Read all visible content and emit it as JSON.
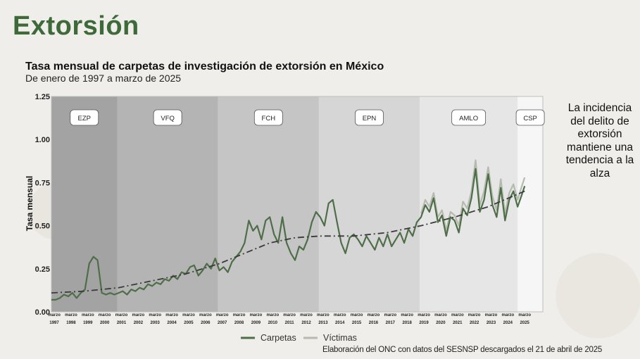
{
  "page": {
    "title": "Extorsión"
  },
  "side_note": "La incidencia del delito de extorsión mantiene una tendencia a la alza",
  "source": "Elaboración del ONC con datos del SESNSP descargados el 21 de abril de 2025",
  "colors": {
    "title": "#3e6a3a",
    "carpetas": "#4e6e48",
    "victimas": "#b5b9ae",
    "trend": "#3a3a3a"
  },
  "chart_data": {
    "type": "line",
    "title": "Tasa mensual de carpetas de investigación de extorsión en México",
    "subtitle": "De enero de 1997 a marzo de 2025",
    "ylabel": "Tasa mensual",
    "ylim": [
      0,
      1.25
    ],
    "xlim": [
      1997.0,
      2026.25
    ],
    "yticks": [
      0,
      0.25,
      0.5,
      0.75,
      1.0,
      1.25
    ],
    "ytick_labels": [
      "0.00",
      "0.25",
      "0.50",
      "0.75",
      "1.00",
      "1.25"
    ],
    "xtick_month": "marzo",
    "xtick_years": [
      "1997",
      "1998",
      "1999",
      "2000",
      "2001",
      "2002",
      "2003",
      "2004",
      "2005",
      "2006",
      "2007",
      "2008",
      "2009",
      "2010",
      "2011",
      "2012",
      "2013",
      "2014",
      "2015",
      "2016",
      "2017",
      "2018",
      "2019",
      "2020",
      "2021",
      "2022",
      "2023",
      "2024",
      "2025"
    ],
    "periods": [
      {
        "label": "EZP",
        "start": 1997.0,
        "end": 2000.92,
        "color": "#a3a3a3"
      },
      {
        "label": "VFQ",
        "start": 2000.92,
        "end": 2006.92,
        "color": "#b4b4b4"
      },
      {
        "label": "FCH",
        "start": 2006.92,
        "end": 2012.92,
        "color": "#c5c5c5"
      },
      {
        "label": "EPN",
        "start": 2012.92,
        "end": 2018.92,
        "color": "#d6d6d6"
      },
      {
        "label": "AMLO",
        "start": 2018.92,
        "end": 2024.75,
        "color": "#e6e6e6"
      },
      {
        "label": "CSP",
        "start": 2024.75,
        "end": 2026.25,
        "color": "#f6f6f6"
      }
    ],
    "legend": [
      "Carpetas",
      "Víctimas"
    ],
    "legend_position": "bottom-center",
    "series": [
      {
        "name": "Carpetas",
        "x": [
          1997.0,
          1997.25,
          1997.5,
          1997.75,
          1998.0,
          1998.25,
          1998.5,
          1998.75,
          1999.0,
          1999.25,
          1999.5,
          1999.75,
          2000.0,
          2000.25,
          2000.5,
          2000.75,
          2001.0,
          2001.25,
          2001.5,
          2001.75,
          2002.0,
          2002.25,
          2002.5,
          2002.75,
          2003.0,
          2003.25,
          2003.5,
          2003.75,
          2004.0,
          2004.25,
          2004.5,
          2004.75,
          2005.0,
          2005.25,
          2005.5,
          2005.75,
          2006.0,
          2006.25,
          2006.5,
          2006.75,
          2007.0,
          2007.25,
          2007.5,
          2007.75,
          2008.0,
          2008.25,
          2008.5,
          2008.75,
          2009.0,
          2009.25,
          2009.5,
          2009.75,
          2010.0,
          2010.25,
          2010.5,
          2010.75,
          2011.0,
          2011.25,
          2011.5,
          2011.75,
          2012.0,
          2012.25,
          2012.5,
          2012.75,
          2013.0,
          2013.25,
          2013.5,
          2013.75,
          2014.0,
          2014.25,
          2014.5,
          2014.75,
          2015.0,
          2015.25,
          2015.5,
          2015.75,
          2016.0,
          2016.25,
          2016.5,
          2016.75,
          2017.0,
          2017.25,
          2017.5,
          2017.75,
          2018.0,
          2018.25,
          2018.5,
          2018.75,
          2019.0,
          2019.25,
          2019.5,
          2019.75,
          2020.0,
          2020.25,
          2020.5,
          2020.75,
          2021.0,
          2021.25,
          2021.5,
          2021.75,
          2022.0,
          2022.25,
          2022.5,
          2022.75,
          2023.0,
          2023.25,
          2023.5,
          2023.75,
          2024.0,
          2024.25,
          2024.5,
          2024.75,
          2025.0,
          2025.17
        ],
        "values": [
          0.07,
          0.07,
          0.08,
          0.1,
          0.09,
          0.11,
          0.08,
          0.11,
          0.13,
          0.28,
          0.32,
          0.3,
          0.11,
          0.1,
          0.11,
          0.1,
          0.11,
          0.12,
          0.1,
          0.13,
          0.12,
          0.14,
          0.13,
          0.16,
          0.15,
          0.17,
          0.16,
          0.19,
          0.18,
          0.21,
          0.19,
          0.23,
          0.22,
          0.26,
          0.27,
          0.21,
          0.24,
          0.28,
          0.25,
          0.31,
          0.24,
          0.26,
          0.23,
          0.29,
          0.32,
          0.35,
          0.4,
          0.53,
          0.47,
          0.5,
          0.42,
          0.53,
          0.55,
          0.45,
          0.4,
          0.55,
          0.4,
          0.34,
          0.3,
          0.38,
          0.36,
          0.42,
          0.52,
          0.58,
          0.55,
          0.5,
          0.63,
          0.65,
          0.52,
          0.4,
          0.34,
          0.43,
          0.45,
          0.42,
          0.38,
          0.44,
          0.4,
          0.36,
          0.43,
          0.38,
          0.45,
          0.38,
          0.42,
          0.46,
          0.4,
          0.48,
          0.44,
          0.52,
          0.55,
          0.62,
          0.58,
          0.66,
          0.52,
          0.56,
          0.44,
          0.55,
          0.53,
          0.46,
          0.6,
          0.56,
          0.66,
          0.83,
          0.58,
          0.65,
          0.8,
          0.62,
          0.55,
          0.72,
          0.53,
          0.65,
          0.7,
          0.61,
          0.68,
          0.73
        ]
      },
      {
        "name": "Víctimas",
        "x": [
          2019.0,
          2019.25,
          2019.5,
          2019.75,
          2020.0,
          2020.25,
          2020.5,
          2020.75,
          2021.0,
          2021.25,
          2021.5,
          2021.75,
          2022.0,
          2022.25,
          2022.5,
          2022.75,
          2023.0,
          2023.25,
          2023.5,
          2023.75,
          2024.0,
          2024.25,
          2024.5,
          2024.75,
          2025.0,
          2025.17
        ],
        "values": [
          0.57,
          0.65,
          0.61,
          0.69,
          0.55,
          0.59,
          0.47,
          0.58,
          0.56,
          0.5,
          0.64,
          0.6,
          0.7,
          0.88,
          0.62,
          0.7,
          0.84,
          0.67,
          0.59,
          0.77,
          0.57,
          0.69,
          0.74,
          0.65,
          0.73,
          0.78
        ]
      },
      {
        "name": "Tendencia",
        "x": [
          1997.0,
          1999.0,
          2001.0,
          2003.0,
          2005.0,
          2007.0,
          2008.5,
          2010.0,
          2011.5,
          2013.0,
          2015.0,
          2017.0,
          2019.0,
          2021.0,
          2023.0,
          2025.17
        ],
        "values": [
          0.11,
          0.12,
          0.14,
          0.18,
          0.22,
          0.28,
          0.34,
          0.4,
          0.43,
          0.44,
          0.44,
          0.46,
          0.5,
          0.55,
          0.61,
          0.7
        ]
      }
    ]
  }
}
